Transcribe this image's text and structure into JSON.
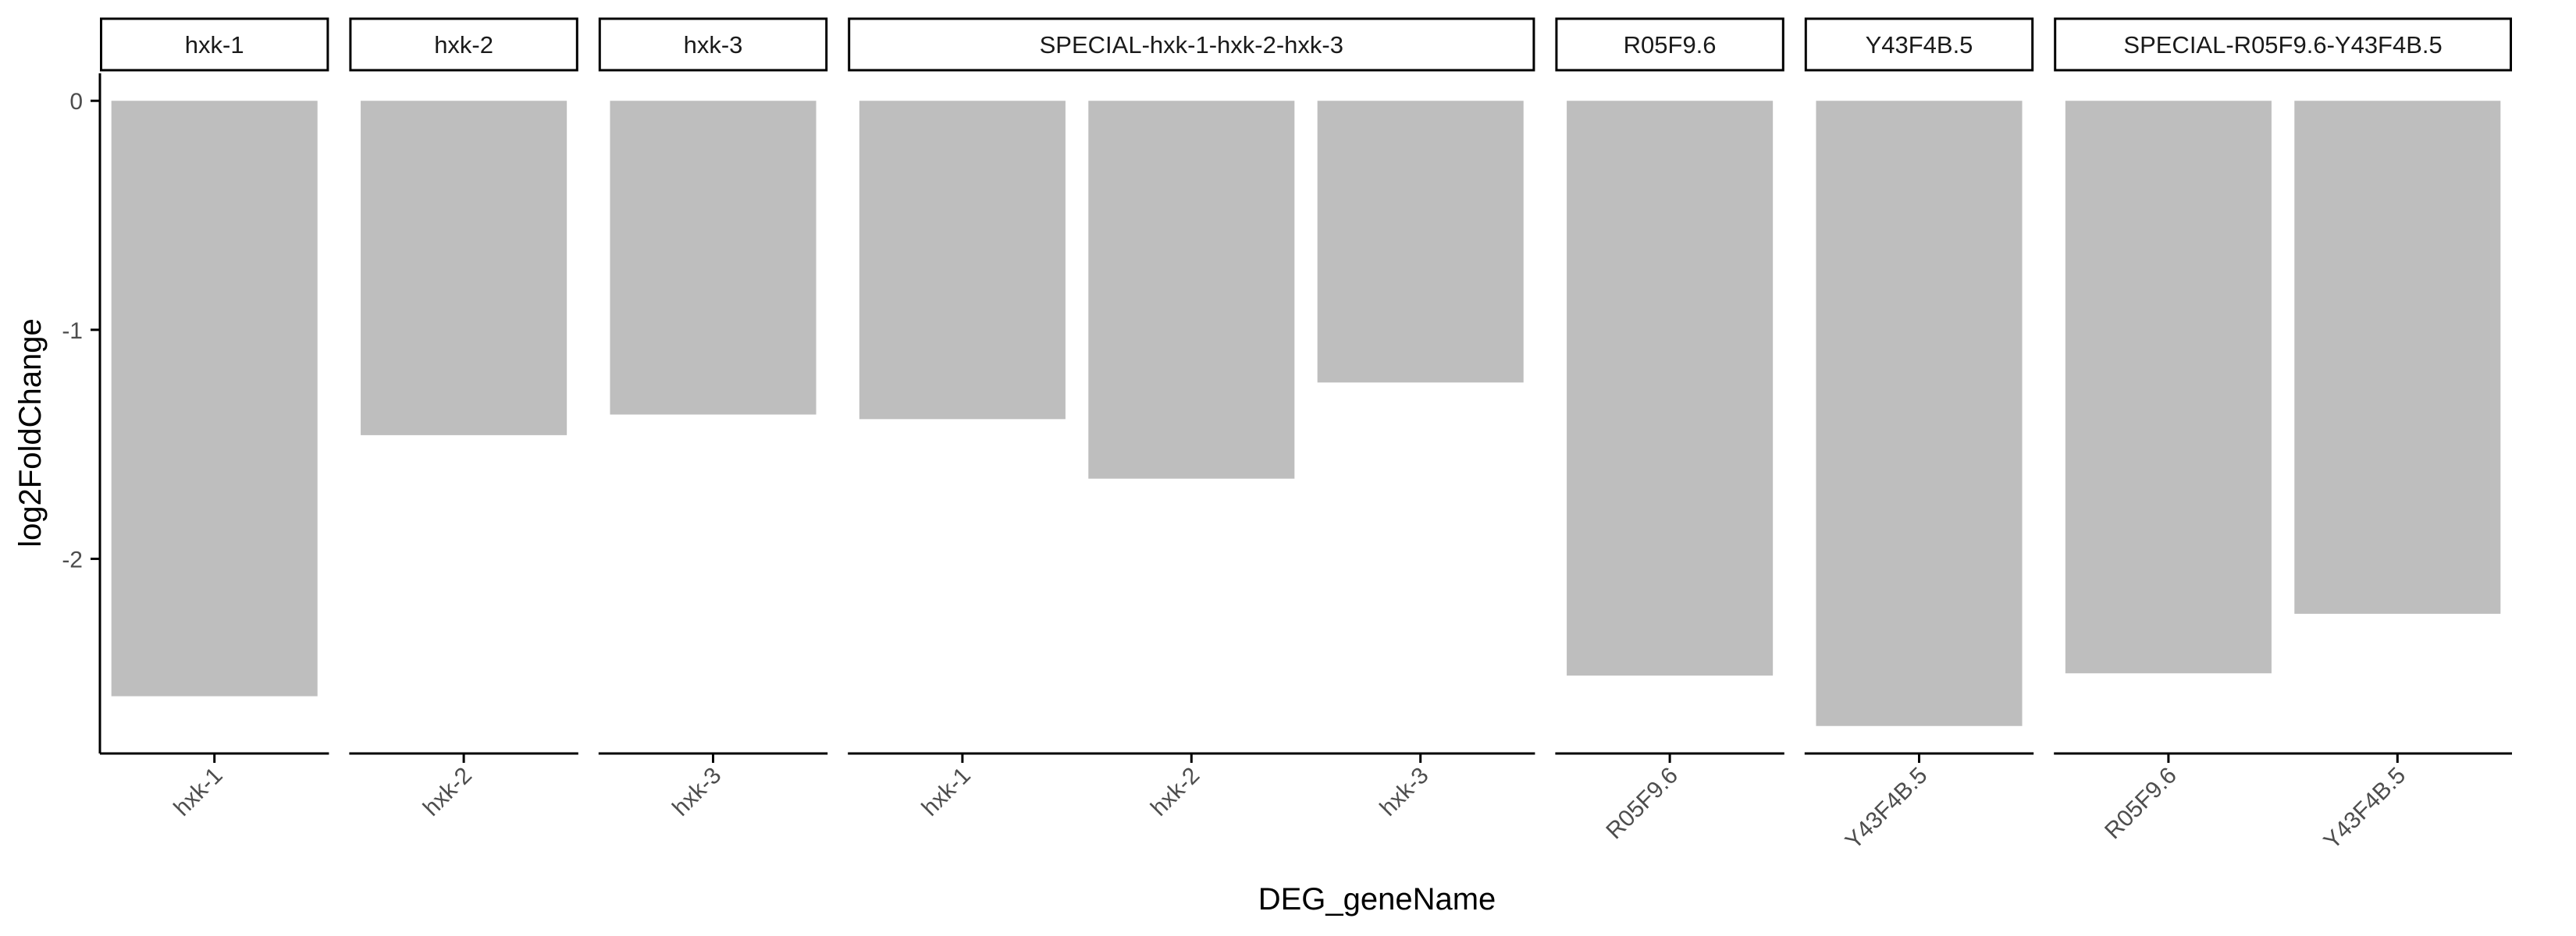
{
  "chart_data": {
    "type": "bar",
    "xlabel": "DEG_geneName",
    "ylabel": "log2FoldChange",
    "ylim": [
      -2.85,
      0.12
    ],
    "yticks": [
      0,
      -1,
      -2
    ],
    "grid": false,
    "bar_color": "#bebebe",
    "axis_color": "#000000",
    "facets": [
      {
        "label": "hxk-1",
        "categories": [
          "hxk-1"
        ],
        "values": [
          -2.6
        ]
      },
      {
        "label": "hxk-2",
        "categories": [
          "hxk-2"
        ],
        "values": [
          -1.46
        ]
      },
      {
        "label": "hxk-3",
        "categories": [
          "hxk-3"
        ],
        "values": [
          -1.37
        ]
      },
      {
        "label": "SPECIAL-hxk-1-hxk-2-hxk-3",
        "categories": [
          "hxk-1",
          "hxk-2",
          "hxk-3"
        ],
        "values": [
          -1.39,
          -1.65,
          -1.23
        ]
      },
      {
        "label": "R05F9.6",
        "categories": [
          "R05F9.6"
        ],
        "values": [
          -2.51
        ]
      },
      {
        "label": "Y43F4B.5",
        "categories": [
          "Y43F4B.5"
        ],
        "values": [
          -2.73
        ]
      },
      {
        "label": "SPECIAL-R05F9.6-Y43F4B.5",
        "categories": [
          "R05F9.6",
          "Y43F4B.5"
        ],
        "values": [
          -2.5,
          -2.24
        ]
      }
    ]
  }
}
